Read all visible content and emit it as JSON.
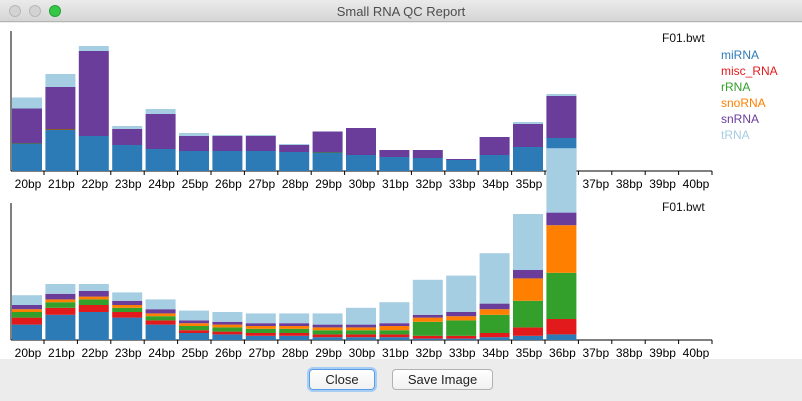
{
  "window": {
    "title": "Small RNA QC Report"
  },
  "buttons": {
    "close_label": "Close",
    "save_label": "Save Image"
  },
  "colors": {
    "miRNA": "#2c7bb6",
    "misc_RNA": "#e31a1c",
    "rRNA": "#33a02c",
    "snoRNA": "#ff7f00",
    "snRNA": "#6a3d9a",
    "tRNA": "#a6cee3"
  },
  "chart_data": [
    {
      "type": "bar",
      "stacked": true,
      "title": "F01.bwt",
      "categories": [
        "20bp",
        "21bp",
        "22bp",
        "23bp",
        "24bp",
        "25bp",
        "26bp",
        "27bp",
        "28bp",
        "29bp",
        "30bp",
        "31bp",
        "32bp",
        "33bp",
        "34bp",
        "35bp",
        "36bp",
        "37bp",
        "38bp",
        "39bp",
        "40bp"
      ],
      "series": [
        {
          "name": "miRNA",
          "values": [
            27,
            41,
            35,
            26,
            22,
            20,
            20,
            20,
            19,
            18,
            16,
            14,
            13,
            11,
            16,
            24,
            33,
            0,
            0,
            0,
            0
          ]
        },
        {
          "name": "misc_RNA",
          "values": [
            0,
            0.5,
            0,
            0,
            0,
            0,
            0,
            0,
            0,
            0,
            0,
            0,
            0,
            0,
            0,
            0,
            0,
            0,
            0,
            0,
            0
          ]
        },
        {
          "name": "rRNA",
          "values": [
            0.5,
            0.5,
            0,
            0,
            0,
            0,
            0,
            0,
            0,
            0.5,
            0,
            0,
            0,
            0,
            0,
            0,
            0,
            0,
            0,
            0,
            0
          ]
        },
        {
          "name": "snoRNA",
          "values": [
            0,
            0,
            0,
            0,
            0,
            0,
            0,
            0,
            0,
            0,
            0,
            0,
            0,
            0,
            0,
            0,
            0,
            0,
            0,
            0,
            0
          ]
        },
        {
          "name": "snRNA",
          "values": [
            35,
            42,
            85,
            16,
            35,
            15,
            15,
            15,
            7,
            21,
            27,
            7,
            8,
            1,
            18,
            23,
            42,
            0,
            0,
            0,
            0
          ]
        },
        {
          "name": "tRNA",
          "values": [
            11,
            13,
            5,
            3,
            5,
            3,
            1,
            1,
            1,
            0,
            0,
            0,
            0,
            0,
            0,
            2,
            2,
            0,
            0,
            0,
            0
          ]
        }
      ],
      "legend": "right"
    },
    {
      "type": "bar",
      "stacked": true,
      "title": "F01.bwt",
      "categories": [
        "20bp",
        "21bp",
        "22bp",
        "23bp",
        "24bp",
        "25bp",
        "26bp",
        "27bp",
        "28bp",
        "29bp",
        "30bp",
        "31bp",
        "32bp",
        "33bp",
        "34bp",
        "35bp",
        "36bp",
        "37bp",
        "38bp",
        "39bp",
        "40bp"
      ],
      "series": [
        {
          "name": "miRNA",
          "values": [
            11,
            18,
            20,
            16,
            11,
            5,
            4,
            3,
            3,
            2,
            2,
            2,
            1,
            1,
            2,
            3,
            4,
            0,
            0,
            0,
            0
          ]
        },
        {
          "name": "misc_RNA",
          "values": [
            5,
            5,
            5,
            4,
            3,
            2,
            2,
            2,
            2,
            2,
            2,
            2,
            2,
            2,
            3,
            6,
            11,
            0,
            0,
            0,
            0
          ]
        },
        {
          "name": "rRNA",
          "values": [
            4,
            4,
            4,
            3,
            3,
            3,
            3,
            3,
            3,
            3,
            3,
            3,
            10,
            11,
            13,
            19,
            33,
            0,
            0,
            0,
            0
          ]
        },
        {
          "name": "snoRNA",
          "values": [
            2,
            2,
            2,
            2,
            2,
            2,
            2,
            2,
            2,
            2,
            2,
            3,
            3,
            3,
            4,
            16,
            34,
            0,
            0,
            0,
            0
          ]
        },
        {
          "name": "snRNA",
          "values": [
            3,
            4,
            4,
            3,
            3,
            2,
            2,
            2,
            2,
            2,
            2,
            2,
            2,
            3,
            4,
            6,
            9,
            0,
            0,
            0,
            0
          ]
        },
        {
          "name": "tRNA",
          "values": [
            7,
            7,
            5,
            6,
            7,
            7,
            7,
            7,
            7,
            8,
            12,
            15,
            25,
            26,
            36,
            40,
            46,
            0,
            0,
            0,
            0
          ]
        }
      ]
    }
  ]
}
